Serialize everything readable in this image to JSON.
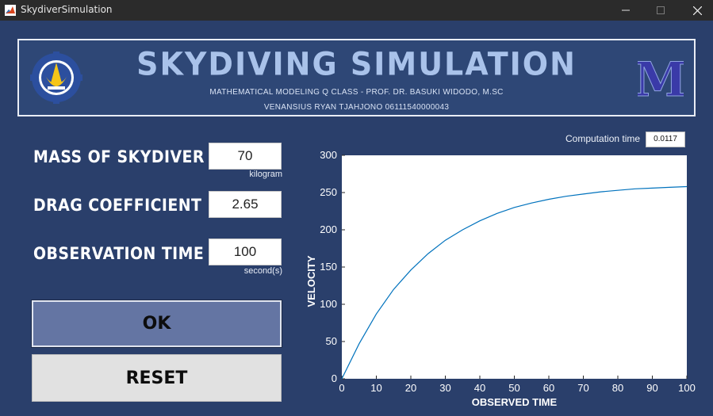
{
  "window": {
    "title": "SkydiverSimulation"
  },
  "banner": {
    "title": "SKYDIVING SIMULATION",
    "subtitle1": "MATHEMATICAL MODELING Q CLASS - PROF. DR. BASUKI WIDODO, M.SC",
    "subtitle2": "VENANSIUS RYAN TJAHJONO 06111540000043",
    "right_logo_letter": "M"
  },
  "fields": {
    "mass": {
      "label": "MASS OF SKYDIVER",
      "value": "70",
      "unit": "kilogram"
    },
    "drag": {
      "label": "DRAG COEFFICIENT",
      "value": "2.65"
    },
    "time": {
      "label": "OBSERVATION TIME",
      "value": "100",
      "unit": "second(s)"
    }
  },
  "buttons": {
    "ok": "OK",
    "reset": "RESET"
  },
  "computation": {
    "label": "Computation time",
    "value": "0.0117"
  },
  "colors": {
    "background": "#2a3f6b",
    "banner": "#2e4776",
    "title_text": "#a9c2ea",
    "ok_button": "#6475a3",
    "curve": "#0072bd"
  },
  "chart_data": {
    "type": "line",
    "xlabel": "OBSERVED TIME",
    "ylabel": "VELOCITY",
    "xlim": [
      0,
      100
    ],
    "ylim": [
      0,
      300
    ],
    "xticks": [
      0,
      10,
      20,
      30,
      40,
      50,
      60,
      70,
      80,
      90,
      100
    ],
    "yticks": [
      0,
      50,
      100,
      150,
      200,
      250,
      300
    ],
    "grid": false,
    "series": [
      {
        "x": [
          0,
          5,
          10,
          15,
          20,
          25,
          30,
          35,
          40,
          45,
          50,
          55,
          60,
          65,
          70,
          75,
          80,
          85,
          90,
          95,
          100
        ],
        "y": [
          0,
          47,
          87,
          120,
          146,
          168,
          186,
          200,
          212,
          222,
          230,
          236,
          241,
          245,
          248,
          251,
          253,
          255,
          256,
          257,
          258
        ]
      }
    ]
  }
}
